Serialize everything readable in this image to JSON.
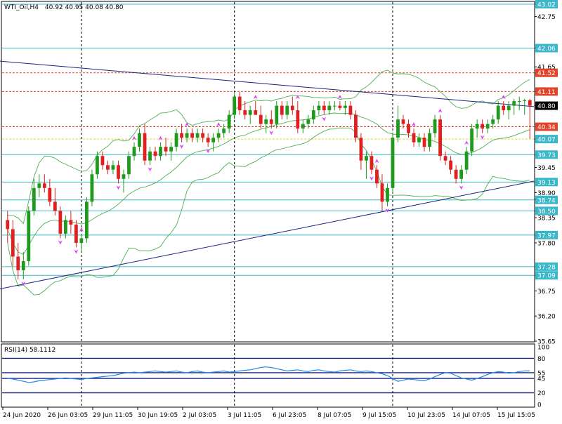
{
  "header": {
    "symbol_label": "WTI_Oil,H4",
    "ohlc_label": "40.92 40.95 40.08 40.80"
  },
  "rsi": {
    "label": "RSI(14) 58.1112",
    "levels": [
      80,
      55,
      45,
      20
    ],
    "scale_labels": [
      "100",
      "80",
      "55",
      "45",
      "20",
      "0"
    ],
    "values": [
      45,
      44,
      42,
      40,
      38,
      39,
      41,
      42,
      43,
      44,
      45,
      46,
      45,
      44,
      43,
      45,
      46,
      47,
      48,
      49,
      50,
      52,
      54,
      55,
      56,
      55,
      56,
      57,
      58,
      57,
      56,
      57,
      58,
      56,
      55,
      57,
      58,
      56,
      55,
      56,
      57,
      58,
      56,
      57,
      58,
      59,
      60,
      62,
      64,
      65,
      64,
      62,
      60,
      58,
      59,
      60,
      58,
      57,
      59,
      60,
      58,
      57,
      56,
      58,
      59,
      60,
      58,
      57,
      58,
      57,
      55,
      53,
      50,
      45,
      40,
      42,
      44,
      43,
      42,
      41,
      44,
      48,
      52,
      55,
      54,
      50,
      46,
      44,
      42,
      45,
      48,
      52,
      55,
      57,
      56,
      54,
      55,
      57,
      58,
      58
    ]
  },
  "chart_data": {
    "type": "candlestick",
    "symbol": "WTI_Oil",
    "timeframe": "H4",
    "ylim": [
      35.65,
      43.02
    ],
    "y_tick_labels": [
      "43.02",
      "42.75",
      "42.06",
      "41.65",
      "41.52",
      "41.11",
      "40.80",
      "40.34",
      "40.07",
      "39.73",
      "39.45",
      "39.13",
      "38.90",
      "38.74",
      "38.50",
      "38.35",
      "37.97",
      "37.80",
      "37.28",
      "37.09",
      "36.75",
      "36.20",
      "35.65"
    ],
    "x_tick_labels": [
      "24 Jun 2020",
      "26 Jun 03:05",
      "29 Jun 11:05",
      "30 Jun 19:05",
      "2 Jul 03:05",
      "3 Jul 11:05",
      "6 Jul 23:05",
      "8 Jul 07:05",
      "9 Jul 15:05",
      "10 Jul 23:05",
      "14 Jul 07:05",
      "15 Jul 15:05"
    ],
    "current_price": 40.8,
    "horizontal_levels": [
      {
        "value": 43.02,
        "style": "solid",
        "color": "#3ab7c8"
      },
      {
        "value": 42.06,
        "style": "solid",
        "color": "#3ab7c8"
      },
      {
        "value": 41.52,
        "style": "dashed",
        "color": "#e0442a"
      },
      {
        "value": 41.11,
        "style": "dashed",
        "color": "#e0442a"
      },
      {
        "value": 40.34,
        "style": "dashed",
        "color": "#e0442a"
      },
      {
        "value": 40.07,
        "style": "dashed",
        "color": "#e8d23a"
      },
      {
        "value": 39.73,
        "style": "solid",
        "color": "#3ab7c8"
      },
      {
        "value": 39.13,
        "style": "solid",
        "color": "#3ab7c8"
      },
      {
        "value": 38.74,
        "style": "solid",
        "color": "#3ab7c8"
      },
      {
        "value": 38.5,
        "style": "solid",
        "color": "#3ab7c8"
      },
      {
        "value": 37.97,
        "style": "solid",
        "color": "#3ab7c8"
      },
      {
        "value": 37.28,
        "style": "solid",
        "color": "#3ab7c8"
      },
      {
        "value": 37.09,
        "style": "solid",
        "color": "#3ab7c8"
      }
    ],
    "level_badge_colors": {
      "43.02": "#3ab7c8",
      "42.06": "#3ab7c8",
      "41.52": "#e0442a",
      "41.11": "#e0442a",
      "40.80": "#000000",
      "40.34": "#e0442a",
      "40.07": "#3ab7c8",
      "39.73": "#3ab7c8",
      "39.13": "#3ab7c8",
      "38.74": "#3ab7c8",
      "38.50": "#3ab7c8",
      "37.97": "#3ab7c8",
      "37.28": "#3ab7c8",
      "37.09": "#3ab7c8"
    },
    "trendlines": [
      {
        "from": {
          "bar": 0,
          "value": 41.78
        },
        "to": {
          "bar": 99,
          "value": 40.78
        },
        "color": "#1a237e"
      },
      {
        "from": {
          "bar": 0,
          "value": 36.78
        },
        "to": {
          "bar": 99,
          "value": 39.15
        },
        "color": "#1a237e"
      }
    ],
    "vertical_dividers_at_bar": [
      14,
      43,
      73
    ],
    "colors": {
      "bull": "#1f9a1f",
      "bear": "#e02020",
      "bands": "#4caf50",
      "fractal": "#e040fb"
    },
    "candles": [
      [
        38.3,
        38.5,
        37.8,
        38.1
      ],
      [
        38.1,
        38.3,
        37.3,
        37.5
      ],
      [
        37.5,
        37.8,
        37.0,
        37.2
      ],
      [
        37.2,
        37.6,
        37.0,
        37.4
      ],
      [
        37.4,
        38.6,
        37.3,
        38.5
      ],
      [
        38.5,
        39.2,
        38.4,
        39.0
      ],
      [
        39.0,
        39.3,
        38.8,
        39.1
      ],
      [
        39.1,
        39.3,
        38.9,
        39.0
      ],
      [
        39.0,
        39.2,
        38.6,
        38.7
      ],
      [
        38.7,
        39.0,
        38.4,
        38.5
      ],
      [
        38.5,
        38.6,
        37.9,
        38.0
      ],
      [
        38.0,
        38.4,
        37.9,
        38.3
      ],
      [
        38.3,
        38.5,
        38.0,
        38.2
      ],
      [
        38.2,
        38.3,
        37.7,
        37.8
      ],
      [
        37.8,
        38.0,
        37.6,
        37.9
      ],
      [
        37.9,
        38.8,
        37.8,
        38.7
      ],
      [
        38.7,
        39.4,
        38.6,
        39.3
      ],
      [
        39.3,
        39.8,
        39.2,
        39.7
      ],
      [
        39.7,
        39.8,
        39.4,
        39.5
      ],
      [
        39.5,
        39.6,
        39.3,
        39.4
      ],
      [
        39.4,
        39.6,
        39.3,
        39.5
      ],
      [
        39.5,
        39.6,
        39.1,
        39.2
      ],
      [
        39.2,
        39.4,
        38.9,
        39.3
      ],
      [
        39.3,
        39.8,
        39.2,
        39.7
      ],
      [
        39.7,
        40.0,
        39.6,
        39.9
      ],
      [
        39.9,
        40.3,
        39.8,
        40.2
      ],
      [
        40.2,
        40.4,
        39.5,
        39.6
      ],
      [
        39.6,
        39.9,
        39.5,
        39.8
      ],
      [
        39.8,
        39.9,
        39.6,
        39.7
      ],
      [
        39.7,
        40.0,
        39.6,
        39.9
      ],
      [
        39.9,
        40.1,
        39.7,
        39.8
      ],
      [
        39.8,
        40.0,
        39.6,
        39.9
      ],
      [
        39.9,
        40.3,
        39.8,
        40.2
      ],
      [
        40.2,
        40.4,
        40.0,
        40.1
      ],
      [
        40.1,
        40.3,
        40.0,
        40.2
      ],
      [
        40.2,
        40.3,
        40.0,
        40.1
      ],
      [
        40.1,
        40.3,
        40.0,
        40.2
      ],
      [
        40.2,
        40.3,
        40.0,
        40.1
      ],
      [
        40.1,
        40.2,
        39.9,
        40.0
      ],
      [
        40.0,
        40.2,
        39.8,
        40.1
      ],
      [
        40.1,
        40.3,
        40.0,
        40.2
      ],
      [
        40.2,
        40.4,
        40.1,
        40.3
      ],
      [
        40.3,
        40.7,
        40.2,
        40.6
      ],
      [
        40.6,
        41.1,
        40.5,
        41.0
      ],
      [
        41.0,
        41.1,
        40.6,
        40.7
      ],
      [
        40.7,
        40.9,
        40.5,
        40.6
      ],
      [
        40.6,
        40.8,
        40.4,
        40.7
      ],
      [
        40.7,
        40.9,
        40.6,
        40.6
      ],
      [
        40.6,
        40.8,
        40.3,
        40.4
      ],
      [
        40.4,
        40.6,
        40.2,
        40.5
      ],
      [
        40.5,
        40.7,
        40.3,
        40.4
      ],
      [
        40.4,
        40.9,
        40.3,
        40.8
      ],
      [
        40.8,
        40.9,
        40.5,
        40.6
      ],
      [
        40.6,
        40.9,
        40.5,
        40.8
      ],
      [
        40.8,
        41.0,
        40.6,
        40.7
      ],
      [
        40.7,
        40.9,
        40.2,
        40.3
      ],
      [
        40.3,
        40.5,
        40.2,
        40.4
      ],
      [
        40.4,
        40.6,
        40.3,
        40.5
      ],
      [
        40.5,
        40.8,
        40.4,
        40.7
      ],
      [
        40.7,
        40.9,
        40.6,
        40.8
      ],
      [
        40.8,
        40.9,
        40.6,
        40.7
      ],
      [
        40.7,
        40.9,
        40.6,
        40.8
      ],
      [
        40.8,
        40.9,
        40.7,
        40.8
      ],
      [
        40.8,
        40.9,
        40.7,
        40.75
      ],
      [
        40.75,
        40.9,
        40.6,
        40.8
      ],
      [
        40.8,
        40.9,
        40.5,
        40.6
      ],
      [
        40.6,
        40.7,
        40.0,
        40.1
      ],
      [
        40.1,
        40.2,
        39.4,
        39.6
      ],
      [
        39.6,
        39.8,
        39.2,
        39.7
      ],
      [
        39.7,
        39.8,
        39.3,
        39.4
      ],
      [
        39.4,
        39.5,
        39.0,
        39.1
      ],
      [
        39.1,
        39.3,
        38.5,
        38.7
      ],
      [
        38.7,
        39.1,
        38.6,
        39.0
      ],
      [
        39.0,
        40.2,
        38.9,
        40.1
      ],
      [
        40.1,
        40.8,
        40.0,
        40.5
      ],
      [
        40.5,
        40.6,
        40.3,
        40.4
      ],
      [
        40.4,
        40.5,
        40.1,
        40.2
      ],
      [
        40.2,
        40.3,
        39.9,
        40.0
      ],
      [
        40.0,
        40.2,
        39.9,
        40.1
      ],
      [
        40.1,
        40.2,
        39.8,
        39.9
      ],
      [
        39.9,
        40.3,
        39.8,
        40.2
      ],
      [
        40.2,
        40.6,
        40.1,
        40.5
      ],
      [
        40.5,
        40.6,
        39.6,
        39.7
      ],
      [
        39.7,
        39.8,
        39.5,
        39.6
      ],
      [
        39.6,
        39.7,
        39.3,
        39.4
      ],
      [
        39.4,
        39.5,
        39.1,
        39.2
      ],
      [
        39.2,
        39.5,
        39.1,
        39.4
      ],
      [
        39.4,
        39.9,
        39.3,
        39.8
      ],
      [
        39.8,
        40.4,
        39.7,
        40.3
      ],
      [
        40.3,
        40.5,
        40.1,
        40.4
      ],
      [
        40.4,
        40.5,
        40.2,
        40.3
      ],
      [
        40.3,
        40.5,
        40.2,
        40.4
      ],
      [
        40.4,
        40.6,
        40.3,
        40.5
      ],
      [
        40.5,
        40.9,
        40.4,
        40.8
      ],
      [
        40.8,
        40.9,
        40.6,
        40.7
      ],
      [
        40.7,
        40.9,
        40.5,
        40.8
      ],
      [
        40.8,
        40.95,
        40.6,
        40.9
      ],
      [
        40.9,
        41.0,
        40.7,
        40.9
      ],
      [
        40.9,
        40.95,
        40.6,
        40.92
      ],
      [
        40.92,
        40.95,
        40.08,
        40.8
      ]
    ],
    "fractals_up_bars": [
      14,
      24,
      29,
      34,
      40,
      47,
      55,
      63,
      70,
      77,
      82,
      87,
      94
    ],
    "fractals_down_bars": [
      3,
      10,
      13,
      21,
      27,
      33,
      38,
      50,
      60,
      69,
      72,
      86,
      90
    ]
  }
}
